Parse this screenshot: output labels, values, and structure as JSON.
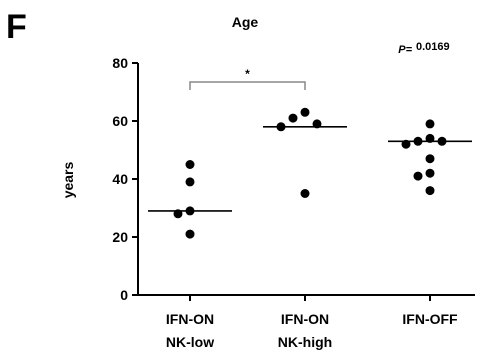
{
  "panel_letter": "F",
  "chart_data": {
    "type": "scatter",
    "title": "Age",
    "ylabel": "years",
    "xlabel": "",
    "ylim": [
      0,
      80
    ],
    "yticks": [
      0,
      20,
      40,
      60,
      80
    ],
    "categories": [
      {
        "line1": "IFN-ON",
        "line2": "NK-low"
      },
      {
        "line1": "IFN-ON",
        "line2": "NK-high"
      },
      {
        "line1": "IFN-OFF",
        "line2": ""
      }
    ],
    "groups": [
      {
        "points": [
          45,
          39,
          29,
          28,
          21
        ],
        "median": 29
      },
      {
        "points": [
          63,
          61,
          59,
          58,
          35
        ],
        "median": 58
      },
      {
        "points": [
          59,
          54,
          53,
          53,
          52,
          47,
          42,
          41,
          36
        ],
        "median": 53
      }
    ],
    "p_label": "P=",
    "p_value": "0.0169",
    "significance": {
      "from": 0,
      "to": 1,
      "label": "*"
    },
    "colors": {
      "points": "#000000",
      "bracket": "#888888",
      "axis": "#000000"
    }
  }
}
